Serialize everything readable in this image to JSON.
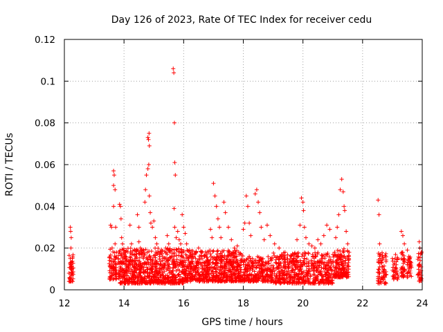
{
  "chart_data": {
    "type": "scatter",
    "title": "Day 126 of 2023, Rate Of TEC Index for receiver cedu",
    "xlabel": "GPS time / hours",
    "ylabel": "ROTI / TECUs",
    "xlim": [
      12,
      24
    ],
    "ylim": [
      0,
      0.12
    ],
    "x_ticks": [
      12,
      14,
      16,
      18,
      20,
      22,
      24
    ],
    "x_tick_labels": [
      "12",
      "14",
      "16",
      "18",
      "20",
      "22",
      "24"
    ],
    "y_ticks": [
      0,
      0.02,
      0.04,
      0.06,
      0.08,
      0.1,
      0.12
    ],
    "y_tick_labels": [
      "0",
      "0.02",
      "0.04",
      "0.06",
      "0.08",
      "0.1",
      "0.12"
    ],
    "grid": true,
    "marker": "plus",
    "color": "#ff0000",
    "series": [
      {
        "name": "ROTI",
        "points": [
          [
            12.2,
            0.03
          ],
          [
            12.21,
            0.028
          ],
          [
            12.23,
            0.025
          ],
          [
            12.22,
            0.02
          ],
          [
            12.2,
            0.015
          ],
          [
            12.21,
            0.012
          ],
          [
            12.22,
            0.01
          ],
          [
            12.23,
            0.008
          ],
          [
            12.2,
            0.006
          ],
          [
            12.22,
            0.004
          ],
          [
            12.21,
            0.013
          ],
          [
            12.23,
            0.011
          ],
          [
            13.55,
            0.031
          ],
          [
            13.58,
            0.03
          ],
          [
            13.6,
            0.02
          ],
          [
            13.57,
            0.015
          ],
          [
            13.6,
            0.012
          ],
          [
            13.62,
            0.01
          ],
          [
            13.58,
            0.008
          ],
          [
            13.55,
            0.006
          ],
          [
            13.63,
            0.005
          ],
          [
            13.65,
            0.057
          ],
          [
            13.67,
            0.055
          ],
          [
            13.65,
            0.05
          ],
          [
            13.7,
            0.048
          ],
          [
            13.65,
            0.04
          ],
          [
            13.72,
            0.03
          ],
          [
            13.7,
            0.022
          ],
          [
            13.75,
            0.018
          ],
          [
            13.85,
            0.041
          ],
          [
            13.88,
            0.04
          ],
          [
            13.9,
            0.034
          ],
          [
            13.92,
            0.025
          ],
          [
            13.95,
            0.022
          ],
          [
            14.0,
            0.019
          ],
          [
            14.05,
            0.016
          ],
          [
            14.1,
            0.014
          ],
          [
            14.2,
            0.031
          ],
          [
            14.25,
            0.022
          ],
          [
            14.3,
            0.017
          ],
          [
            14.35,
            0.014
          ],
          [
            14.4,
            0.012
          ],
          [
            14.45,
            0.036
          ],
          [
            14.5,
            0.03
          ],
          [
            14.5,
            0.023
          ],
          [
            14.55,
            0.02
          ],
          [
            14.6,
            0.018
          ],
          [
            14.65,
            0.015
          ],
          [
            14.7,
            0.042
          ],
          [
            14.72,
            0.048
          ],
          [
            14.75,
            0.055
          ],
          [
            14.8,
            0.058
          ],
          [
            14.8,
            0.073
          ],
          [
            14.82,
            0.072
          ],
          [
            14.84,
            0.075
          ],
          [
            14.85,
            0.069
          ],
          [
            14.83,
            0.06
          ],
          [
            14.85,
            0.045
          ],
          [
            14.88,
            0.037
          ],
          [
            14.9,
            0.032
          ],
          [
            14.95,
            0.03
          ],
          [
            15.0,
            0.033
          ],
          [
            15.05,
            0.025
          ],
          [
            15.1,
            0.022
          ],
          [
            15.15,
            0.018
          ],
          [
            15.2,
            0.016
          ],
          [
            15.3,
            0.014
          ],
          [
            15.35,
            0.012
          ],
          [
            15.4,
            0.02
          ],
          [
            15.45,
            0.026
          ],
          [
            15.5,
            0.022
          ],
          [
            15.55,
            0.018
          ],
          [
            15.6,
            0.016
          ],
          [
            15.65,
            0.106
          ],
          [
            15.67,
            0.104
          ],
          [
            15.69,
            0.08
          ],
          [
            15.7,
            0.061
          ],
          [
            15.72,
            0.055
          ],
          [
            15.68,
            0.039
          ],
          [
            15.7,
            0.03
          ],
          [
            15.75,
            0.025
          ],
          [
            15.8,
            0.028
          ],
          [
            15.85,
            0.024
          ],
          [
            15.9,
            0.022
          ],
          [
            15.95,
            0.036
          ],
          [
            16.0,
            0.03
          ],
          [
            16.05,
            0.027
          ],
          [
            16.1,
            0.022
          ],
          [
            16.2,
            0.019
          ],
          [
            16.3,
            0.017
          ],
          [
            16.4,
            0.015
          ],
          [
            16.5,
            0.02
          ],
          [
            16.6,
            0.018
          ],
          [
            16.7,
            0.016
          ],
          [
            16.9,
            0.029
          ],
          [
            16.95,
            0.025
          ],
          [
            17.0,
            0.051
          ],
          [
            17.05,
            0.045
          ],
          [
            17.1,
            0.04
          ],
          [
            17.15,
            0.034
          ],
          [
            17.2,
            0.03
          ],
          [
            17.25,
            0.025
          ],
          [
            17.35,
            0.042
          ],
          [
            17.4,
            0.037
          ],
          [
            17.5,
            0.03
          ],
          [
            17.6,
            0.024
          ],
          [
            17.7,
            0.02
          ],
          [
            17.8,
            0.021
          ],
          [
            18.0,
            0.029
          ],
          [
            18.05,
            0.032
          ],
          [
            18.1,
            0.045
          ],
          [
            18.15,
            0.04
          ],
          [
            18.2,
            0.032
          ],
          [
            18.25,
            0.026
          ],
          [
            18.4,
            0.046
          ],
          [
            18.45,
            0.048
          ],
          [
            18.5,
            0.042
          ],
          [
            18.55,
            0.037
          ],
          [
            18.6,
            0.03
          ],
          [
            18.7,
            0.024
          ],
          [
            18.8,
            0.031
          ],
          [
            18.9,
            0.026
          ],
          [
            19.05,
            0.022
          ],
          [
            19.2,
            0.02
          ],
          [
            19.4,
            0.018
          ],
          [
            19.6,
            0.016
          ],
          [
            19.8,
            0.024
          ],
          [
            19.9,
            0.031
          ],
          [
            19.95,
            0.044
          ],
          [
            20.0,
            0.042
          ],
          [
            20.02,
            0.038
          ],
          [
            20.05,
            0.03
          ],
          [
            20.1,
            0.025
          ],
          [
            20.2,
            0.022
          ],
          [
            20.3,
            0.021
          ],
          [
            20.4,
            0.02
          ],
          [
            20.5,
            0.024
          ],
          [
            20.6,
            0.022
          ],
          [
            20.7,
            0.026
          ],
          [
            20.8,
            0.031
          ],
          [
            20.9,
            0.029
          ],
          [
            21.1,
            0.025
          ],
          [
            21.15,
            0.03
          ],
          [
            21.2,
            0.036
          ],
          [
            21.25,
            0.048
          ],
          [
            21.3,
            0.053
          ],
          [
            21.35,
            0.047
          ],
          [
            21.38,
            0.04
          ],
          [
            21.4,
            0.038
          ],
          [
            21.45,
            0.028
          ],
          [
            21.5,
            0.022
          ],
          [
            21.55,
            0.018
          ],
          [
            22.52,
            0.043
          ],
          [
            22.55,
            0.036
          ],
          [
            22.57,
            0.022
          ],
          [
            22.6,
            0.017
          ],
          [
            22.62,
            0.014
          ],
          [
            22.65,
            0.011
          ],
          [
            22.7,
            0.008
          ],
          [
            22.75,
            0.006
          ],
          [
            22.6,
            0.004
          ],
          [
            23.0,
            0.015
          ],
          [
            23.05,
            0.012
          ],
          [
            23.1,
            0.01
          ],
          [
            23.15,
            0.008
          ],
          [
            23.2,
            0.006
          ],
          [
            23.3,
            0.028
          ],
          [
            23.35,
            0.026
          ],
          [
            23.4,
            0.022
          ],
          [
            23.32,
            0.018
          ],
          [
            23.38,
            0.015
          ],
          [
            23.35,
            0.011
          ],
          [
            23.3,
            0.008
          ],
          [
            23.5,
            0.019
          ],
          [
            23.55,
            0.016
          ],
          [
            23.6,
            0.013
          ],
          [
            23.55,
            0.01
          ],
          [
            23.6,
            0.008
          ],
          [
            23.9,
            0.023
          ],
          [
            23.92,
            0.02
          ],
          [
            23.95,
            0.017
          ],
          [
            23.93,
            0.014
          ],
          [
            23.96,
            0.011
          ],
          [
            23.92,
            0.008
          ],
          [
            23.95,
            0.005
          ]
        ],
        "dense_bands": [
          {
            "x_from": 12.15,
            "x_to": 12.3,
            "y_from": 0.004,
            "y_to": 0.017,
            "count": 35
          },
          {
            "x_from": 13.5,
            "x_to": 13.75,
            "y_from": 0.005,
            "y_to": 0.02,
            "count": 60
          },
          {
            "x_from": 13.8,
            "x_to": 16.0,
            "y_from": 0.003,
            "y_to": 0.02,
            "count": 700
          },
          {
            "x_from": 16.0,
            "x_to": 18.0,
            "y_from": 0.004,
            "y_to": 0.019,
            "count": 600
          },
          {
            "x_from": 18.0,
            "x_to": 19.0,
            "y_from": 0.004,
            "y_to": 0.016,
            "count": 250
          },
          {
            "x_from": 19.0,
            "x_to": 21.0,
            "y_from": 0.003,
            "y_to": 0.018,
            "count": 500
          },
          {
            "x_from": 21.0,
            "x_to": 21.55,
            "y_from": 0.006,
            "y_to": 0.02,
            "count": 160
          },
          {
            "x_from": 22.5,
            "x_to": 22.8,
            "y_from": 0.003,
            "y_to": 0.018,
            "count": 60
          },
          {
            "x_from": 23.0,
            "x_to": 23.2,
            "y_from": 0.005,
            "y_to": 0.017,
            "count": 30
          },
          {
            "x_from": 23.28,
            "x_to": 23.42,
            "y_from": 0.006,
            "y_to": 0.018,
            "count": 30
          },
          {
            "x_from": 23.48,
            "x_to": 23.65,
            "y_from": 0.006,
            "y_to": 0.016,
            "count": 30
          },
          {
            "x_from": 23.85,
            "x_to": 23.98,
            "y_from": 0.004,
            "y_to": 0.019,
            "count": 30
          }
        ]
      }
    ]
  }
}
